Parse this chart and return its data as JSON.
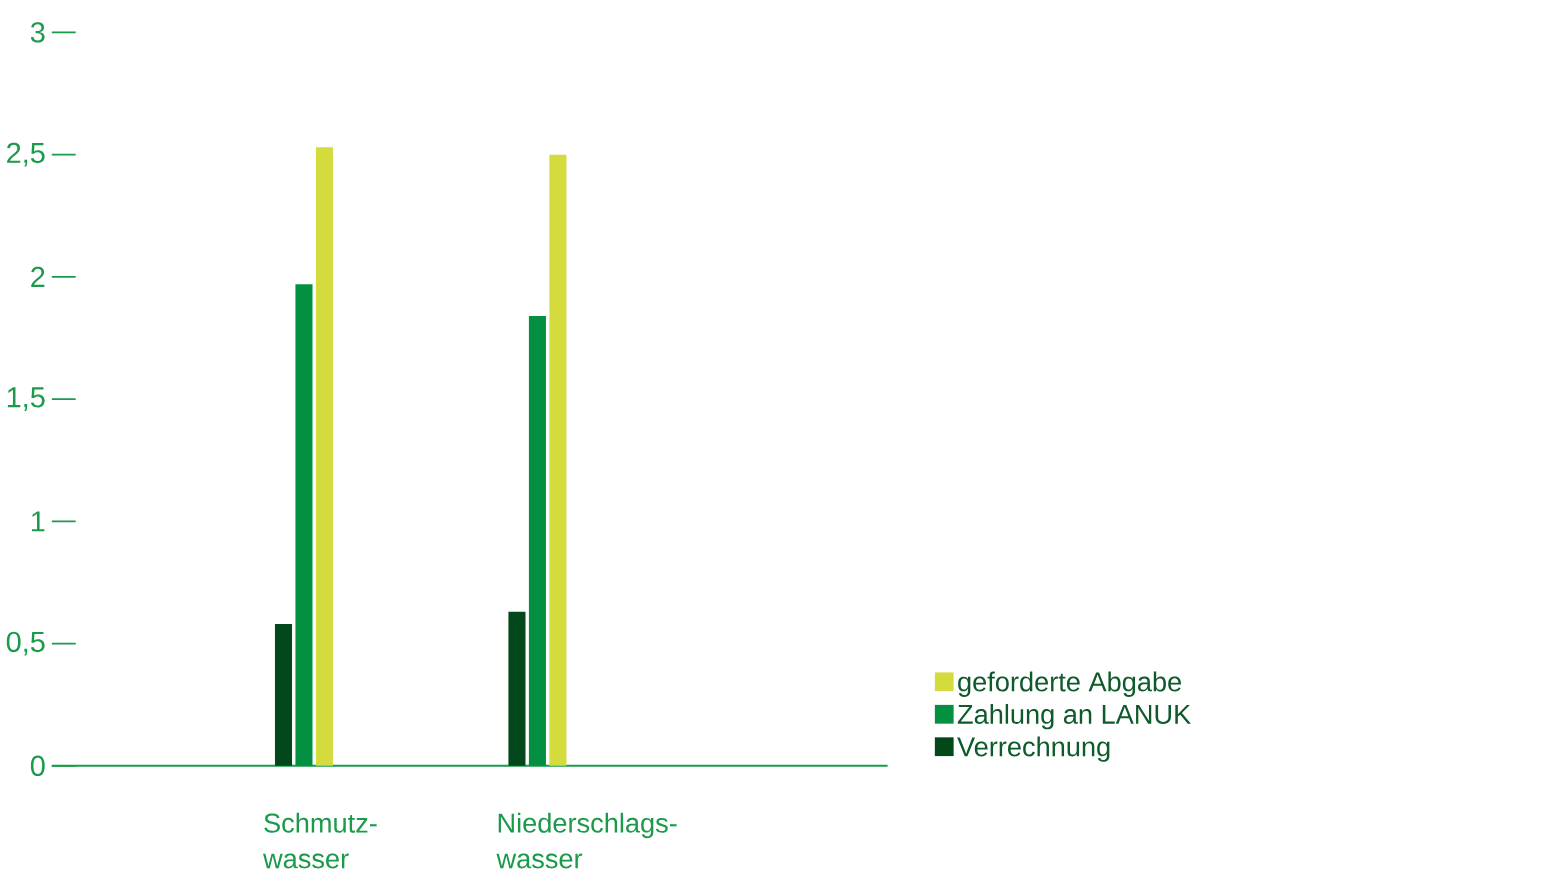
{
  "chart_data": {
    "type": "bar",
    "categories": [
      "Schmutz- wasser",
      "Niederschlags- wasser"
    ],
    "series": [
      {
        "name": "Verrechnung",
        "color": "#03481a",
        "values": [
          0.58,
          0.63
        ]
      },
      {
        "name": "Zahlung an LANUK",
        "color": "#039141",
        "values": [
          1.97,
          1.84
        ]
      },
      {
        "name": "geforderte Abgabe",
        "color": "#d4db3d",
        "values": [
          2.53,
          2.5
        ]
      }
    ],
    "ylim": [
      0,
      3
    ],
    "yticks": [
      0,
      {
        "value": 0.5,
        "label": "0,5"
      },
      1,
      {
        "value": 1.5,
        "label": "1,5"
      },
      2,
      {
        "value": 2.5,
        "label": "2,5"
      },
      3
    ],
    "grid": false,
    "legend": "bottom right"
  }
}
